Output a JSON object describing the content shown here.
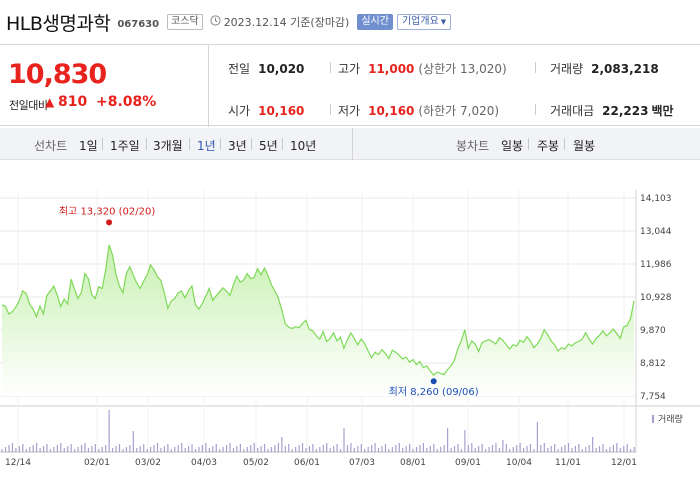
{
  "header": {
    "name": "HLB생명과학",
    "code": "067630",
    "market": "코스닥",
    "date": "2023.12.14 기준(장마감)",
    "realtime": "실시간",
    "company_info": "기업개요"
  },
  "price": {
    "current": "10,830",
    "change_label": "전일대비",
    "change_arrow": "▲",
    "change_amount": "810",
    "change_pct": "+8.08%"
  },
  "stats": {
    "prev_label": "전일",
    "prev": "10,020",
    "high_label": "고가",
    "high": "11,000",
    "upper_limit": "(상한가 13,020)",
    "volume_label": "거래량",
    "volume": "2,083,218",
    "open_label": "시가",
    "open": "10,160",
    "low_label": "저가",
    "low": "10,160",
    "lower_limit": "(하한가 7,020)",
    "amount_label": "거래대금",
    "amount": "22,223",
    "amount_unit": "백만"
  },
  "periods": {
    "line_label": "선차트",
    "line_items": [
      "1일",
      "1주일",
      "3개월",
      "1년",
      "3년",
      "5년",
      "10년"
    ],
    "active": "1년",
    "candle_label": "봉차트",
    "candle_items": [
      "일봉",
      "주봉",
      "월봉"
    ]
  },
  "colors": {
    "red": "#e8221c",
    "blue": "#1a4fb4",
    "line": "#7ed957",
    "fill_top": "#c7f0b0",
    "volume_bar": "#a99fcf"
  },
  "chart_data": {
    "type": "area",
    "series_name": "",
    "y_ticks": [
      "14,103",
      "13,044",
      "11,986",
      "10,928",
      "9,870",
      "8,812",
      "7,754"
    ],
    "ylim": [
      7754,
      14103
    ],
    "x_ticks": [
      "12/14",
      "02/01",
      "03/02",
      "04/03",
      "05/02",
      "06/01",
      "07/03",
      "08/01",
      "09/01",
      "10/04",
      "11/01",
      "12/01"
    ],
    "high_annotation": "최고 13,320 (02/20)",
    "low_annotation": "최저 8,260 (09/06)",
    "volume_legend": "거래량",
    "values": [
      10680,
      10620,
      10380,
      10460,
      10600,
      10820,
      11120,
      11040,
      10700,
      10540,
      10300,
      10640,
      10380,
      10980,
      11120,
      11280,
      10980,
      10620,
      10860,
      10700,
      11500,
      11180,
      10880,
      11080,
      11680,
      11520,
      11000,
      10880,
      11260,
      11200,
      11780,
      12600,
      12280,
      11660,
      11280,
      11060,
      11680,
      11900,
      11640,
      11380,
      11200,
      11440,
      11620,
      11960,
      11800,
      11580,
      11460,
      11060,
      10560,
      10800,
      10880,
      11060,
      11120,
      10900,
      11140,
      11280,
      10680,
      10540,
      10720,
      10960,
      11200,
      10820,
      10960,
      11100,
      11220,
      11120,
      10980,
      11320,
      11600,
      11400,
      11480,
      11680,
      11520,
      11560,
      11840,
      11640,
      11860,
      11620,
      11320,
      11120,
      10900,
      10520,
      10080,
      9960,
      9920,
      9980,
      9940,
      10080,
      10180,
      9880,
      9840,
      9680,
      9580,
      9820,
      9500,
      9600,
      9780,
      9520,
      9640,
      9280,
      9560,
      9780,
      9600,
      9400,
      9580,
      9440,
      9200,
      8980,
      9160,
      9080,
      9240,
      9120,
      8960,
      9220,
      9160,
      9060,
      8940,
      9000,
      8840,
      8920,
      8760,
      8860,
      8660,
      8720,
      8560,
      8420,
      8520,
      8480,
      8440,
      8600,
      8720,
      8900,
      9280,
      9520,
      9880,
      9280,
      9520,
      9420,
      9180,
      9460,
      9520,
      9560,
      9500,
      9420,
      9620,
      9540,
      9400,
      9260,
      9400,
      9360,
      9540,
      9480,
      9660,
      9520,
      9300,
      9420,
      9600,
      9880,
      9720,
      9520,
      9400,
      9200,
      9300,
      9260,
      9420,
      9360,
      9460,
      9500,
      9580,
      9780,
      9580,
      9420,
      9600,
      9700,
      9840,
      9680,
      9780,
      9900,
      9760,
      9600,
      9960,
      10020,
      10240,
      10800
    ]
  }
}
